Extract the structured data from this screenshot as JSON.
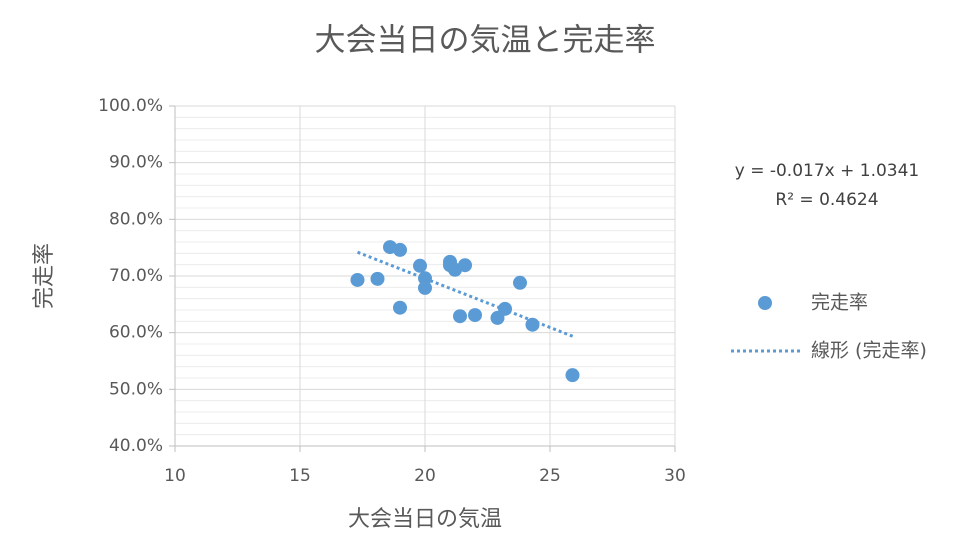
{
  "chart_data": {
    "type": "scatter",
    "title": "大会当日の気温と完走率",
    "x_label": "大会当日の気温",
    "y_label": "完走率",
    "xlim": [
      10,
      30
    ],
    "xticks": [
      10,
      15,
      20,
      25,
      30
    ],
    "ylim": [
      40,
      100
    ],
    "yticks": [
      {
        "value": 40,
        "label": "40.0%"
      },
      {
        "value": 50,
        "label": "50.0%"
      },
      {
        "value": 60,
        "label": "60.0%"
      },
      {
        "value": 70,
        "label": "70.0%"
      },
      {
        "value": 80,
        "label": "80.0%"
      },
      {
        "value": 90,
        "label": "90.0%"
      },
      {
        "value": 100,
        "label": "100.0%"
      }
    ],
    "yminorticks": [
      42,
      44,
      46,
      48,
      52,
      54,
      56,
      58,
      62,
      64,
      66,
      68,
      72,
      74,
      76,
      78,
      82,
      84,
      86,
      88,
      92,
      94,
      96,
      98
    ],
    "grid": true,
    "legend": "right",
    "annotations": [
      "y = -0.017x + 1.0341",
      "R² = 0.4624"
    ],
    "series": [
      {
        "name": "完走率",
        "color": "#5b9bd5",
        "mark": "marker",
        "x": [
          17.3,
          18.1,
          18.6,
          19.0,
          19.0,
          19.8,
          20.0,
          20.0,
          21.0,
          21.0,
          21.2,
          21.6,
          21.4,
          22.0,
          22.9,
          23.2,
          23.8,
          24.3,
          25.9
        ],
        "values": [
          69.3,
          69.5,
          75.1,
          74.6,
          64.4,
          71.8,
          69.6,
          67.9,
          72.5,
          71.9,
          71.1,
          71.9,
          62.9,
          63.1,
          62.6,
          64.2,
          68.8,
          61.4,
          52.5
        ]
      },
      {
        "name": "線形 (完走率)",
        "color": "#5b9bd5",
        "mark": "dotted-line",
        "x": [
          17.3,
          26.0
        ],
        "values": [
          74.2,
          59.2
        ]
      }
    ]
  }
}
